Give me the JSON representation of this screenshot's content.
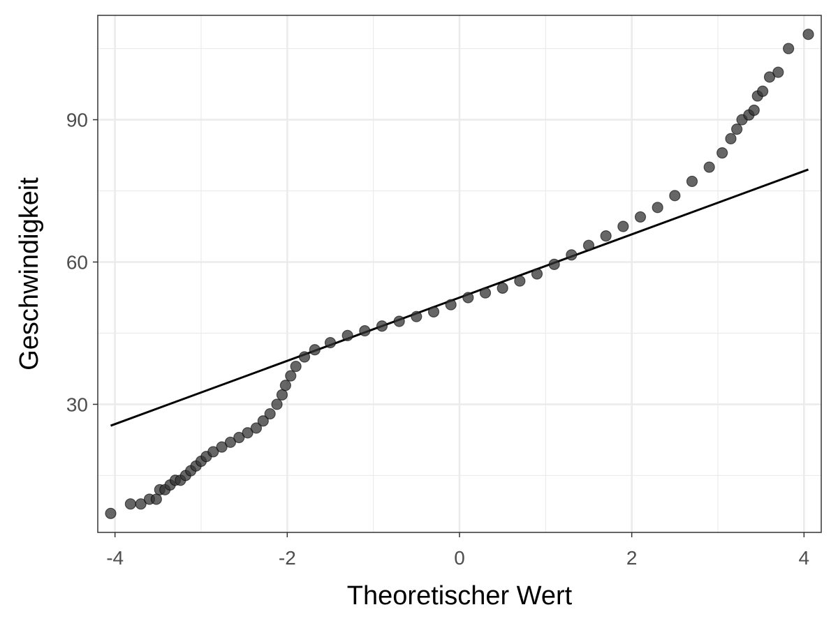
{
  "chart_data": {
    "type": "scatter",
    "subtype": "qq-plot",
    "title": "",
    "xlabel": "Theoretischer Wert",
    "ylabel": "Geschwindigkeit",
    "xlim": [
      -4.2,
      4.2
    ],
    "ylim": [
      3,
      112
    ],
    "x_ticks": [
      -4,
      -2,
      0,
      2,
      4
    ],
    "x_tick_labels": [
      "-4",
      "-2",
      "0",
      "2",
      "4"
    ],
    "y_ticks": [
      30,
      60,
      90
    ],
    "y_tick_labels": [
      "30",
      "60",
      "90"
    ],
    "x_minor_ticks": [
      -3,
      -1,
      1,
      3
    ],
    "y_minor_ticks": [
      15,
      45,
      75,
      105
    ],
    "grid": true,
    "legend": "none",
    "colors": {
      "points": "#333333",
      "reference_line": "#000000",
      "grid": "#ebebeb",
      "panel_border": "#333333"
    },
    "reference_line": {
      "x": [
        -4.05,
        4.05
      ],
      "y": [
        25.5,
        79.5
      ]
    },
    "points": [
      [
        -4.05,
        7
      ],
      [
        -3.82,
        9
      ],
      [
        -3.7,
        9
      ],
      [
        -3.6,
        10
      ],
      [
        -3.52,
        10
      ],
      [
        -3.48,
        12
      ],
      [
        -3.42,
        12
      ],
      [
        -3.36,
        13
      ],
      [
        -3.3,
        14
      ],
      [
        -3.24,
        14
      ],
      [
        -3.18,
        15
      ],
      [
        -3.12,
        16
      ],
      [
        -3.06,
        17
      ],
      [
        -3.0,
        18
      ],
      [
        -2.94,
        19
      ],
      [
        -2.86,
        20
      ],
      [
        -2.76,
        21
      ],
      [
        -2.66,
        22
      ],
      [
        -2.56,
        23
      ],
      [
        -2.46,
        24
      ],
      [
        -2.36,
        25
      ],
      [
        -2.28,
        26.5
      ],
      [
        -2.2,
        28
      ],
      [
        -2.12,
        30
      ],
      [
        -2.06,
        32
      ],
      [
        -2.02,
        34
      ],
      [
        -1.96,
        36
      ],
      [
        -1.9,
        38
      ],
      [
        -1.8,
        40
      ],
      [
        -1.68,
        41.5
      ],
      [
        -1.5,
        43
      ],
      [
        -1.3,
        44.5
      ],
      [
        -1.1,
        45.5
      ],
      [
        -0.9,
        46.5
      ],
      [
        -0.7,
        47.5
      ],
      [
        -0.5,
        48.5
      ],
      [
        -0.3,
        49.5
      ],
      [
        -0.1,
        51
      ],
      [
        0.1,
        52.5
      ],
      [
        0.3,
        53.5
      ],
      [
        0.5,
        54.5
      ],
      [
        0.7,
        56
      ],
      [
        0.9,
        57.5
      ],
      [
        1.1,
        59.5
      ],
      [
        1.3,
        61.5
      ],
      [
        1.5,
        63.5
      ],
      [
        1.7,
        65.5
      ],
      [
        1.9,
        67.5
      ],
      [
        2.1,
        69.5
      ],
      [
        2.3,
        71.5
      ],
      [
        2.5,
        74
      ],
      [
        2.7,
        77
      ],
      [
        2.9,
        80
      ],
      [
        3.05,
        83
      ],
      [
        3.15,
        86
      ],
      [
        3.22,
        88
      ],
      [
        3.28,
        90
      ],
      [
        3.36,
        91
      ],
      [
        3.42,
        92
      ],
      [
        3.46,
        95
      ],
      [
        3.52,
        96
      ],
      [
        3.6,
        99
      ],
      [
        3.7,
        100
      ],
      [
        3.82,
        105
      ],
      [
        4.05,
        108
      ]
    ]
  }
}
